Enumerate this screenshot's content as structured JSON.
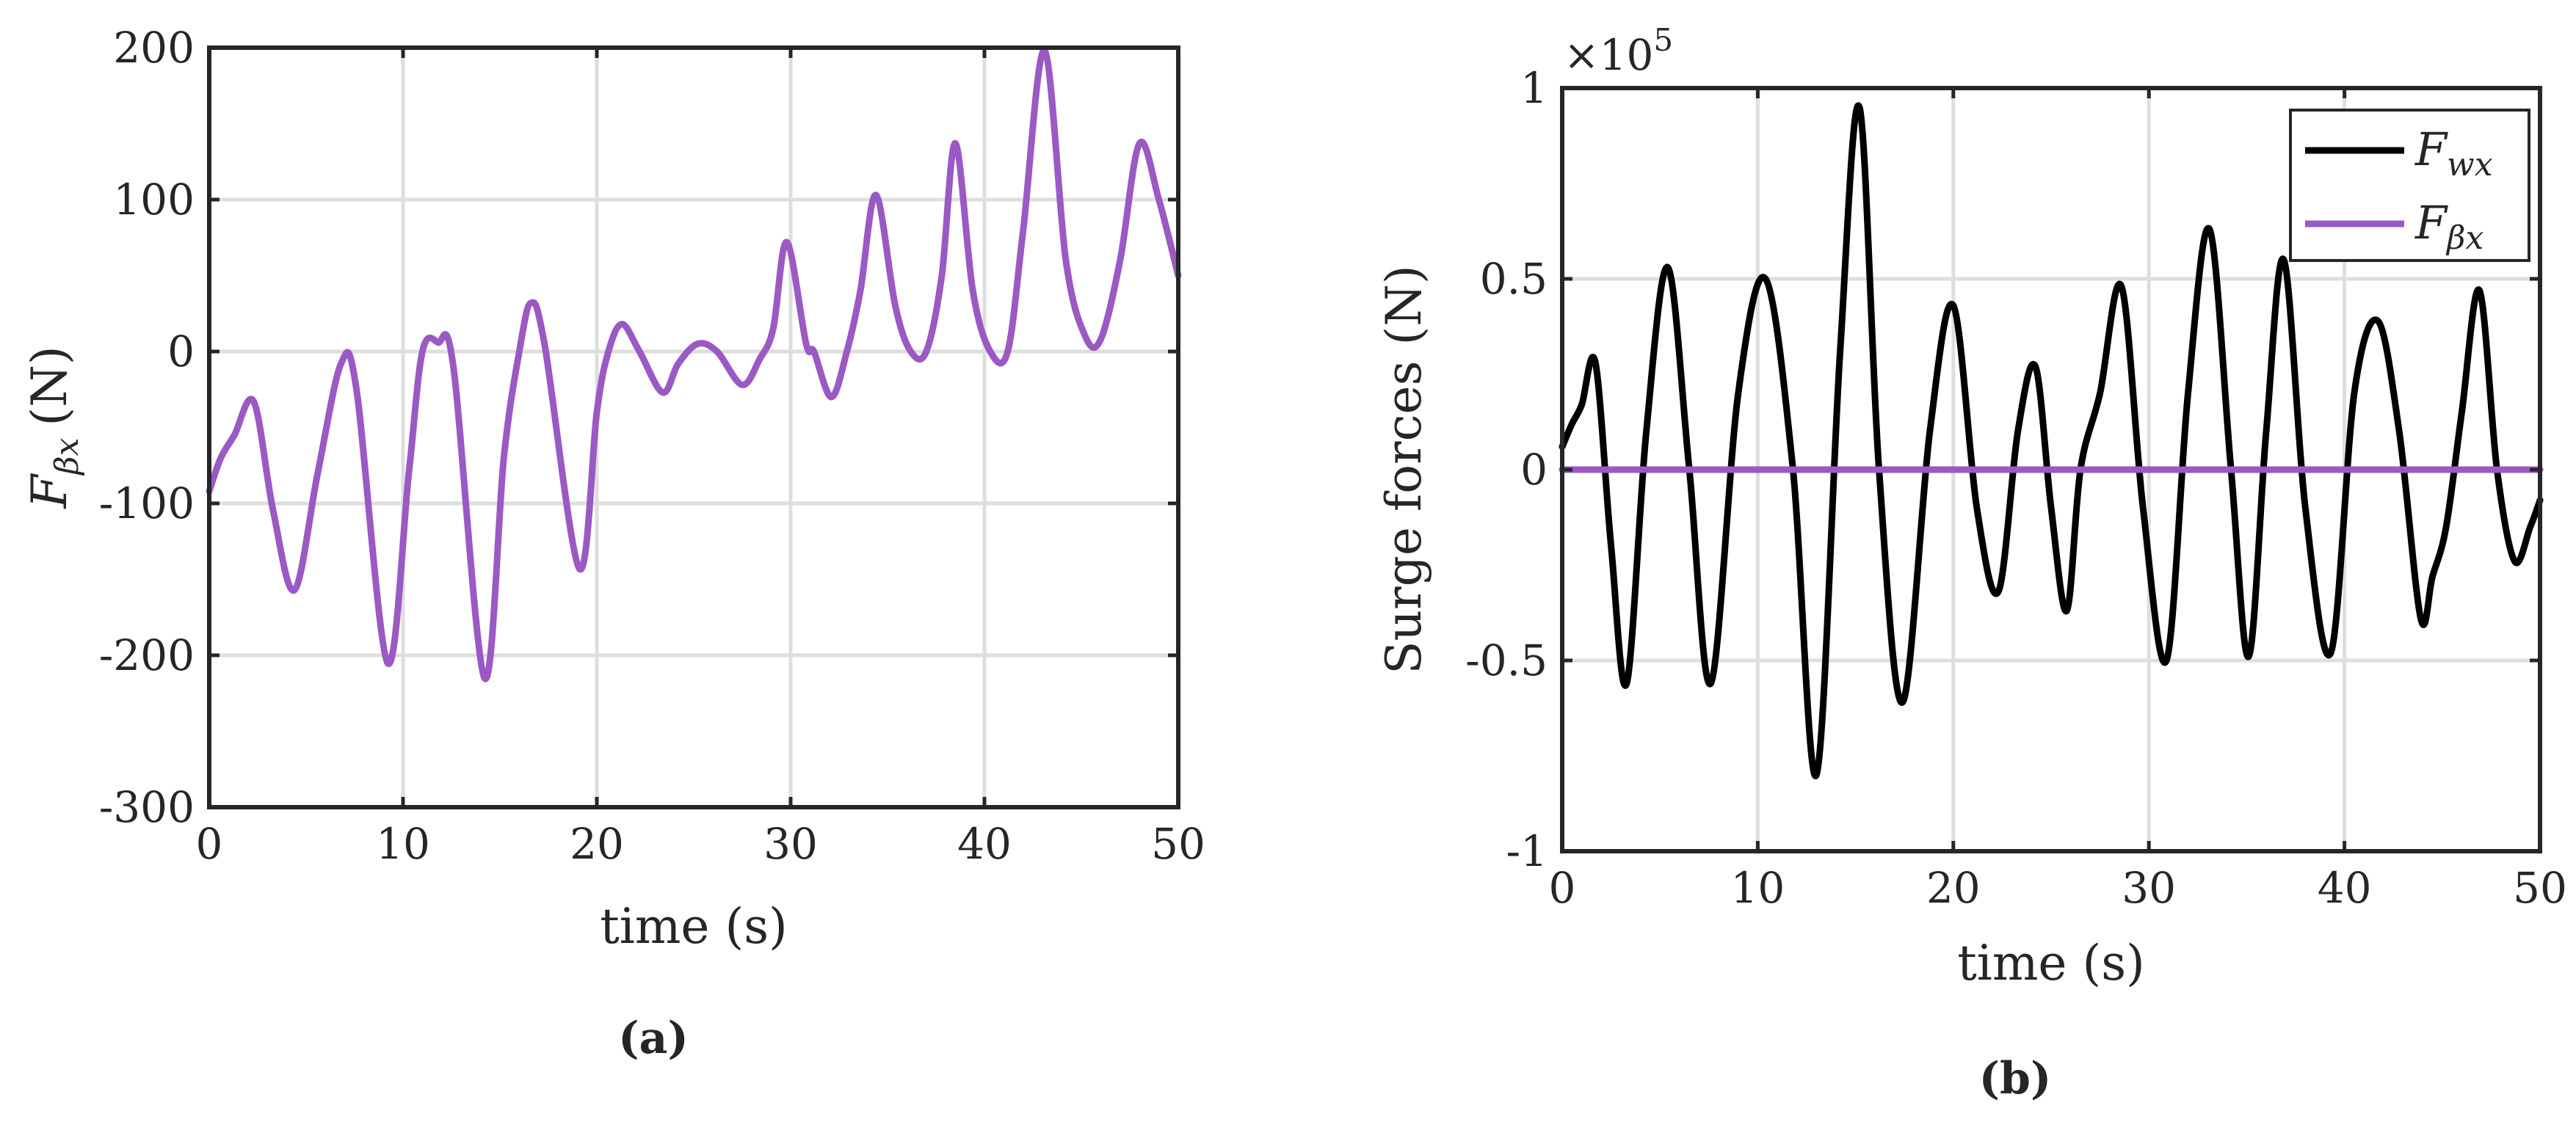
{
  "chart_data": [
    {
      "id": "a",
      "type": "line",
      "panel_label": "(a)",
      "xlabel": "time (s)",
      "ylabel_main": "F",
      "ylabel_sub": "βx",
      "ylabel_unit": "(N)",
      "xlim": [
        0,
        50
      ],
      "ylim": [
        -300,
        200
      ],
      "xticks": [
        0,
        10,
        20,
        30,
        40,
        50
      ],
      "yticks": [
        -300,
        -200,
        -100,
        0,
        100,
        200
      ],
      "ytick_labels": [
        "-300",
        "-200",
        "-100",
        "0",
        "100",
        "200"
      ],
      "grid": true,
      "series": [
        {
          "color": "#9b59c4",
          "points": [
            [
              0,
              -92
            ],
            [
              0.6,
              -70
            ],
            [
              1.3,
              -55
            ],
            [
              2.3,
              -33
            ],
            [
              3.3,
              -105
            ],
            [
              4.4,
              -157
            ],
            [
              5.6,
              -80
            ],
            [
              6.8,
              -8
            ],
            [
              7.6,
              -25
            ],
            [
              9.2,
              -205
            ],
            [
              10.3,
              -80
            ],
            [
              11.0,
              0
            ],
            [
              11.8,
              6
            ],
            [
              12.6,
              -10
            ],
            [
              14.2,
              -215
            ],
            [
              15.2,
              -70
            ],
            [
              16.0,
              0
            ],
            [
              16.6,
              32
            ],
            [
              17.3,
              5
            ],
            [
              19.1,
              -143
            ],
            [
              20.0,
              -40
            ],
            [
              20.6,
              0
            ],
            [
              21.3,
              18
            ],
            [
              22.2,
              0
            ],
            [
              23.4,
              -27
            ],
            [
              24.2,
              -8
            ],
            [
              25.2,
              5
            ],
            [
              26.2,
              0
            ],
            [
              27.5,
              -22
            ],
            [
              28.4,
              -5
            ],
            [
              29.1,
              15
            ],
            [
              29.8,
              72
            ],
            [
              30.8,
              5
            ],
            [
              31.2,
              0
            ],
            [
              32.1,
              -30
            ],
            [
              32.9,
              0
            ],
            [
              33.6,
              40
            ],
            [
              34.4,
              103
            ],
            [
              35.4,
              30
            ],
            [
              36.2,
              0
            ],
            [
              37.0,
              0
            ],
            [
              37.8,
              50
            ],
            [
              38.5,
              137
            ],
            [
              39.4,
              40
            ],
            [
              40.3,
              0
            ],
            [
              41.2,
              0
            ],
            [
              42.0,
              80
            ],
            [
              43.1,
              198
            ],
            [
              44.2,
              60
            ],
            [
              45.2,
              10
            ],
            [
              46.0,
              8
            ],
            [
              47.0,
              60
            ],
            [
              48.0,
              137
            ],
            [
              49.0,
              100
            ],
            [
              50,
              50
            ]
          ]
        }
      ]
    },
    {
      "id": "b",
      "type": "line",
      "panel_label": "(b)",
      "xlabel": "time (s)",
      "ylabel": "Surge forces (N)",
      "exponent": "×10^5",
      "exponent_base": "×10",
      "exponent_power": "5",
      "xlim": [
        0,
        50
      ],
      "ylim": [
        -1,
        1
      ],
      "xticks": [
        0,
        10,
        20,
        30,
        40,
        50
      ],
      "yticks": [
        -1,
        -0.5,
        0,
        0.5,
        1
      ],
      "ytick_labels": [
        "-1",
        "-0.5",
        "0",
        "0.5",
        "1"
      ],
      "grid": true,
      "legend_position": "top-right",
      "series": [
        {
          "name_main": "F",
          "name_sub": "wx",
          "color": "#000000",
          "points": [
            [
              0,
              0.06
            ],
            [
              0.5,
              0.12
            ],
            [
              1.0,
              0.17
            ],
            [
              1.7,
              0.28
            ],
            [
              2.5,
              -0.2
            ],
            [
              3.3,
              -0.56
            ],
            [
              4.3,
              0.1
            ],
            [
              5.4,
              0.53
            ],
            [
              6.5,
              0.0
            ],
            [
              7.6,
              -0.56
            ],
            [
              9.0,
              0.2
            ],
            [
              10.4,
              0.5
            ],
            [
              11.8,
              0.0
            ],
            [
              13.0,
              -0.8
            ],
            [
              14.2,
              0.3
            ],
            [
              15.2,
              0.95
            ],
            [
              16.2,
              0.0
            ],
            [
              17.4,
              -0.61
            ],
            [
              18.8,
              0.1
            ],
            [
              20.0,
              0.43
            ],
            [
              21.2,
              -0.1
            ],
            [
              22.3,
              -0.32
            ],
            [
              23.3,
              0.1
            ],
            [
              24.2,
              0.27
            ],
            [
              25.0,
              -0.1
            ],
            [
              25.8,
              -0.37
            ],
            [
              26.5,
              0.0
            ],
            [
              27.5,
              0.2
            ],
            [
              28.6,
              0.48
            ],
            [
              29.7,
              -0.1
            ],
            [
              30.9,
              -0.5
            ],
            [
              32.0,
              0.2
            ],
            [
              33.1,
              0.63
            ],
            [
              34.2,
              0.0
            ],
            [
              35.1,
              -0.49
            ],
            [
              36.0,
              0.1
            ],
            [
              36.9,
              0.55
            ],
            [
              38.0,
              -0.1
            ],
            [
              39.3,
              -0.48
            ],
            [
              40.5,
              0.2
            ],
            [
              41.7,
              0.39
            ],
            [
              42.8,
              0.1
            ],
            [
              43.9,
              -0.39
            ],
            [
              44.5,
              -0.28
            ],
            [
              45.2,
              -0.15
            ],
            [
              46.0,
              0.15
            ],
            [
              46.9,
              0.47
            ],
            [
              47.8,
              0.0
            ],
            [
              48.7,
              -0.24
            ],
            [
              49.5,
              -0.15
            ],
            [
              50,
              -0.08
            ]
          ]
        },
        {
          "name_main": "F",
          "name_sub": "βx",
          "color": "#9b59c4",
          "points": [
            [
              0,
              0
            ],
            [
              10,
              0
            ],
            [
              20,
              0
            ],
            [
              30,
              0
            ],
            [
              40,
              0
            ],
            [
              50,
              0
            ]
          ]
        }
      ]
    }
  ]
}
